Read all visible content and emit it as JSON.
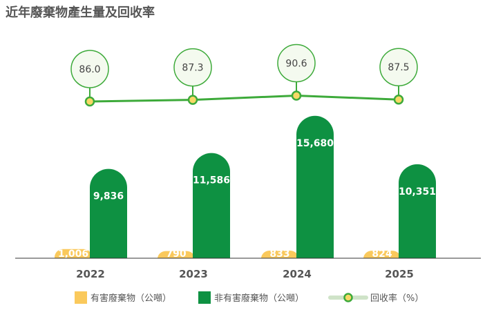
{
  "title": "近年廢棄物產生量及回收率",
  "colors": {
    "hazardous": "#FAC95C",
    "non_hazardous": "#0E9142",
    "recovery_line": "#3DAA3A",
    "marker_fill": "#F8D866",
    "bubble_fill": "#F4FAEF",
    "baseline": "#333333"
  },
  "chart_data": {
    "type": "bar",
    "categories": [
      "2022",
      "2023",
      "2024",
      "2025"
    ],
    "series": [
      {
        "name": "有害廢棄物（公噸）",
        "values": [
          1006,
          790,
          833,
          824
        ],
        "labels": [
          "1,006",
          "790",
          "833",
          "824"
        ]
      },
      {
        "name": "非有害廢棄物（公噸）",
        "values": [
          9836,
          11586,
          15680,
          10351
        ],
        "labels": [
          "9,836",
          "11,586",
          "15,680",
          "10,351"
        ]
      }
    ],
    "line_series": {
      "name": "回收率（%）",
      "values": [
        86.0,
        87.3,
        90.6,
        87.5
      ],
      "labels": [
        "86.0",
        "87.3",
        "90.6",
        "87.5"
      ]
    },
    "legend": [
      "有害廢棄物（公噸）",
      "非有害廢棄物（公噸）",
      "回收率（%）"
    ],
    "legend_position": "bottom",
    "grid": false
  }
}
